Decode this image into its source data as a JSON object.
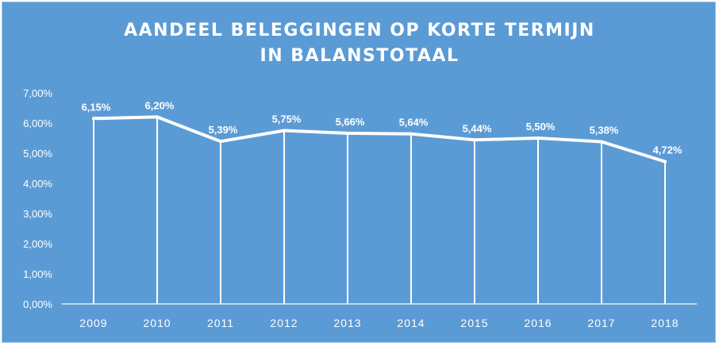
{
  "chart_data": {
    "type": "line",
    "title_line1": "AANDEEL BELEGGINGEN OP KORTE TERMIJN",
    "title_line2": "IN BALANSTOTAAL",
    "categories": [
      "2009",
      "2010",
      "2011",
      "2012",
      "2013",
      "2014",
      "2015",
      "2016",
      "2017",
      "2018"
    ],
    "values": [
      6.15,
      6.2,
      5.39,
      5.75,
      5.66,
      5.64,
      5.44,
      5.5,
      5.38,
      4.72
    ],
    "data_labels": [
      "6,15%",
      "6,20%",
      "5,39%",
      "5,75%",
      "5,66%",
      "5,64%",
      "5,44%",
      "5,50%",
      "5,38%",
      "4,72%"
    ],
    "y_ticks": [
      0,
      1,
      2,
      3,
      4,
      5,
      6,
      7
    ],
    "y_tick_labels": [
      "0,00%",
      "1,00%",
      "2,00%",
      "3,00%",
      "4,00%",
      "5,00%",
      "6,00%",
      "7,00%"
    ],
    "ylim": [
      0,
      7
    ],
    "drop_lines": true,
    "grid": false,
    "colors": {
      "background": "#5b9bd5",
      "line": "#ffffff",
      "text": "#ffffff"
    }
  }
}
